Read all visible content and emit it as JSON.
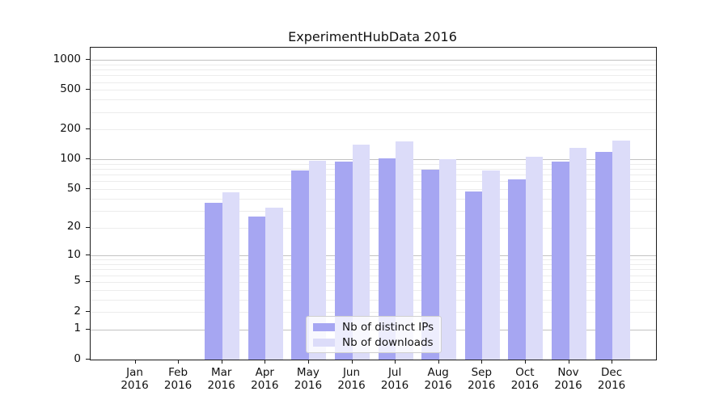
{
  "chart_data": {
    "type": "bar",
    "title": "ExperimentHubData 2016",
    "months": [
      "Jan",
      "Feb",
      "Mar",
      "Apr",
      "May",
      "Jun",
      "Jul",
      "Aug",
      "Sep",
      "Oct",
      "Nov",
      "Dec"
    ],
    "year_label": "2016",
    "categories": [
      "Jan 2016",
      "Feb 2016",
      "Mar 2016",
      "Apr 2016",
      "May 2016",
      "Jun 2016",
      "Jul 2016",
      "Aug 2016",
      "Sep 2016",
      "Oct 2016",
      "Nov 2016",
      "Dec 2016"
    ],
    "series": [
      {
        "name": "Nb of distinct IPs",
        "color": "#a6a6f2",
        "values": [
          0,
          0,
          36,
          26,
          78,
          96,
          103,
          79,
          47,
          63,
          95,
          120
        ]
      },
      {
        "name": "Nb of downloads",
        "color": "#dcdcf9",
        "values": [
          0,
          0,
          46,
          32,
          97,
          142,
          152,
          100,
          78,
          106,
          132,
          156
        ]
      }
    ],
    "yscale": "log1p",
    "ylim": [
      0,
      1330
    ],
    "ytick_labels": [
      0,
      1,
      2,
      5,
      10,
      20,
      50,
      100,
      200,
      500,
      1000
    ],
    "grid": {
      "major_ticks": [
        1,
        10,
        100,
        1000
      ],
      "minor_decades": [
        1,
        10,
        100
      ],
      "major_color": "#c2c2c2",
      "minor_color": "#ececec"
    },
    "legend": {
      "position": "lower-center",
      "frame": true
    },
    "xlabel": "",
    "ylabel": ""
  }
}
